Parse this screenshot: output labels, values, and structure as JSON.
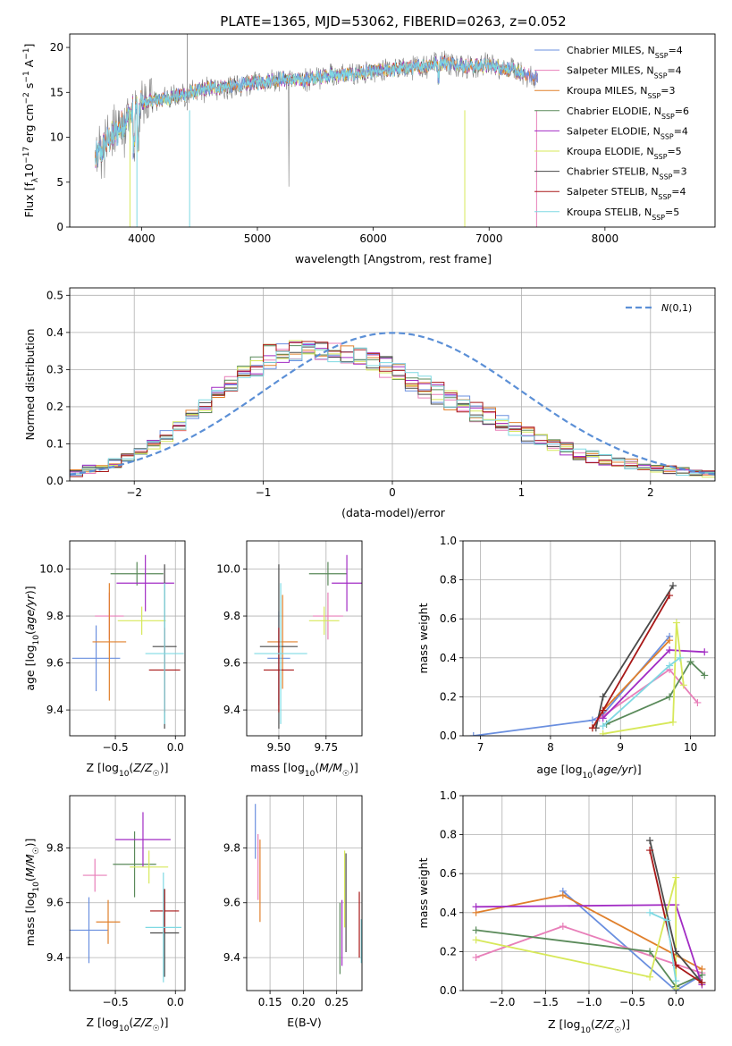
{
  "figure_title": "PLATE=1365, MJD=53062, FIBERID=0263, z=0.052",
  "colors": [
    "#6a8fdf",
    "#e87fb9",
    "#e0802c",
    "#5a8a5a",
    "#a22cc4",
    "#d7e85a",
    "#4a4a4a",
    "#a81818",
    "#7fd9e3"
  ],
  "chart_data": [
    {
      "id": "spectrum",
      "type": "line",
      "xlabel": "wavelength [Angstrom, rest frame]",
      "ylabel": "Flux [f_λ 10^-17 erg cm^-2 s^-1 A^-1]",
      "xlim": [
        3380,
        8950
      ],
      "ylim": [
        0,
        21.5
      ],
      "xticks": [
        4000,
        5000,
        6000,
        7000,
        8000
      ],
      "yticks": [
        0,
        5,
        10,
        15,
        20
      ],
      "grid": false,
      "legend": "upper-right",
      "continuum_x": [
        3600,
        3700,
        3800,
        3900,
        4000,
        4200,
        4400,
        4600,
        4800,
        5000,
        5200,
        5400,
        5600,
        5800,
        6000,
        6200,
        6400,
        6600,
        6700,
        6800,
        7000,
        7200,
        7300,
        7400
      ],
      "continuum_y": [
        7.5,
        9.5,
        10.8,
        12.5,
        13.8,
        14.3,
        14.9,
        15.5,
        15.7,
        16.1,
        16.5,
        16.3,
        16.9,
        17.0,
        17.3,
        17.6,
        17.9,
        18.3,
        18.2,
        17.9,
        18.0,
        17.5,
        17.0,
        16.6
      ],
      "series": [
        {
          "name": "Chabrier MILES, N_SSP=4"
        },
        {
          "name": "Salpeter MILES, N_SSP=4"
        },
        {
          "name": "Kroupa MILES, N_SSP=3"
        },
        {
          "name": "Chabrier ELODIE, N_SSP=6"
        },
        {
          "name": "Salpeter ELODIE, N_SSP=4"
        },
        {
          "name": "Kroupa ELODIE, N_SSP=5"
        },
        {
          "name": "Chabrier STELIB, N_SSP=3"
        },
        {
          "name": "Salpeter STELIB, N_SSP=4"
        },
        {
          "name": "Kroupa STELIB, N_SSP=5"
        }
      ]
    },
    {
      "id": "residuals",
      "type": "histogram",
      "xlabel": "(data-model)/error",
      "ylabel": "Normed distribution",
      "xlim": [
        -2.5,
        2.5
      ],
      "ylim": [
        0,
        0.52
      ],
      "xticks": [
        -2,
        -1,
        0,
        1,
        2
      ],
      "yticks": [
        0,
        0.1,
        0.2,
        0.3,
        0.4,
        0.5
      ],
      "grid": true,
      "legend": "upper-right",
      "gaussian_label": "N(0,1)",
      "bin_width": 0.1,
      "histograms": [
        [
          0.03,
          0.04,
          0.05,
          0.06,
          0.08,
          0.1,
          0.13,
          0.16,
          0.2,
          0.24,
          0.27,
          0.31,
          0.33,
          0.36,
          0.38,
          0.4,
          0.41,
          0.4,
          0.38,
          0.36,
          0.34,
          0.3,
          0.27,
          0.24,
          0.21,
          0.17,
          0.14,
          0.12,
          0.09,
          0.08,
          0.06,
          0.05,
          0.04,
          0.03,
          0.03,
          0.02,
          0.02,
          0.02,
          0.01,
          0.01,
          0.01,
          0.01,
          0.01,
          0.02,
          0.02,
          0.02,
          0.02,
          0.02,
          0.02,
          0.02
        ],
        [
          0.02,
          0.03,
          0.04,
          0.05,
          0.07,
          0.09,
          0.12,
          0.15,
          0.19,
          0.23,
          0.26,
          0.3,
          0.34,
          0.38,
          0.4,
          0.44,
          0.42,
          0.41,
          0.39,
          0.37,
          0.34,
          0.31,
          0.28,
          0.25,
          0.22,
          0.18,
          0.15,
          0.12,
          0.1,
          0.08,
          0.06,
          0.05,
          0.04,
          0.03,
          0.03,
          0.02,
          0.02,
          0.02,
          0.01,
          0.01,
          0.01,
          0.01,
          0.01,
          0.02,
          0.02,
          0.02,
          0.02,
          0.02,
          0.02,
          0.02
        ]
      ]
    },
    {
      "id": "age-vs-Z",
      "type": "scatter",
      "xlabel": "Z [log10(Z/Z_sun)]",
      "ylabel": "age [log10(age/yr)]",
      "xlim": [
        -0.88,
        0.08
      ],
      "ylim": [
        9.29,
        10.12
      ],
      "xticks": [
        -0.5,
        0.0
      ],
      "yticks": [
        9.4,
        9.6,
        9.8,
        10.0
      ],
      "grid": true,
      "points": [
        {
          "x": -0.66,
          "y": 9.62,
          "xerr": 0.2,
          "yerr": 0.14
        },
        {
          "x": -0.55,
          "y": 9.8,
          "xerr": 0.12,
          "yerr": 0.1
        },
        {
          "x": -0.55,
          "y": 9.69,
          "xerr": 0.14,
          "yerr": 0.25
        },
        {
          "x": -0.32,
          "y": 9.98,
          "xerr": 0.22,
          "yerr": 0.05
        },
        {
          "x": -0.25,
          "y": 9.94,
          "xerr": 0.24,
          "yerr": 0.12
        },
        {
          "x": -0.28,
          "y": 9.78,
          "xerr": 0.2,
          "yerr": 0.06
        },
        {
          "x": -0.09,
          "y": 9.67,
          "xerr": 0.1,
          "yerr": 0.35
        },
        {
          "x": -0.09,
          "y": 9.57,
          "xerr": 0.13,
          "yerr": 0.18
        },
        {
          "x": -0.09,
          "y": 9.64,
          "xerr": 0.16,
          "yerr": 0.3
        }
      ]
    },
    {
      "id": "age-vs-mass",
      "type": "scatter",
      "xlabel": "mass [log10(M/M_sun)]",
      "ylabel": "",
      "xlim": [
        9.33,
        9.94
      ],
      "ylim": [
        9.29,
        10.12
      ],
      "xticks": [
        9.5,
        9.75
      ],
      "yticks": [
        9.4,
        9.6,
        9.8,
        10.0
      ],
      "grid": true,
      "points": [
        {
          "x": 9.5,
          "y": 9.62,
          "xerr": 0.06,
          "yerr": 0.2
        },
        {
          "x": 9.76,
          "y": 9.8,
          "xerr": 0.08,
          "yerr": 0.1
        },
        {
          "x": 9.52,
          "y": 9.69,
          "xerr": 0.08,
          "yerr": 0.2
        },
        {
          "x": 9.76,
          "y": 9.98,
          "xerr": 0.1,
          "yerr": 0.05
        },
        {
          "x": 9.86,
          "y": 9.94,
          "xerr": 0.08,
          "yerr": 0.12
        },
        {
          "x": 9.74,
          "y": 9.78,
          "xerr": 0.08,
          "yerr": 0.06
        },
        {
          "x": 9.5,
          "y": 9.67,
          "xerr": 0.1,
          "yerr": 0.35
        },
        {
          "x": 9.5,
          "y": 9.57,
          "xerr": 0.08,
          "yerr": 0.18
        },
        {
          "x": 9.51,
          "y": 9.64,
          "xerr": 0.14,
          "yerr": 0.3
        }
      ]
    },
    {
      "id": "weight-vs-age",
      "type": "line",
      "xlabel": "age [log10(age/yr)]",
      "ylabel": "mass weight",
      "xlim": [
        6.75,
        10.35
      ],
      "ylim": [
        0,
        1.0
      ],
      "xticks": [
        7,
        8,
        9,
        10
      ],
      "yticks": [
        0.0,
        0.2,
        0.4,
        0.6,
        0.8,
        1.0
      ],
      "grid": true,
      "series": [
        {
          "x": [
            6.9,
            8.6,
            8.75,
            9.7
          ],
          "y": [
            0.0,
            0.08,
            0.11,
            0.51
          ]
        },
        {
          "x": [
            8.7,
            9.7,
            10.1
          ],
          "y": [
            0.09,
            0.34,
            0.17
          ]
        },
        {
          "x": [
            8.6,
            8.75,
            9.7
          ],
          "y": [
            0.04,
            0.13,
            0.49
          ]
        },
        {
          "x": [
            8.8,
            9.7,
            10.0,
            10.2
          ],
          "y": [
            0.06,
            0.2,
            0.38,
            0.31
          ]
        },
        {
          "x": [
            8.75,
            9.7,
            10.2
          ],
          "y": [
            0.09,
            0.44,
            0.43
          ]
        },
        {
          "x": [
            8.75,
            9.75,
            9.8,
            9.9
          ],
          "y": [
            0.01,
            0.07,
            0.58,
            0.26
          ]
        },
        {
          "x": [
            8.65,
            8.75,
            9.75
          ],
          "y": [
            0.04,
            0.2,
            0.77
          ]
        },
        {
          "x": [
            8.6,
            8.75,
            9.7
          ],
          "y": [
            0.04,
            0.13,
            0.72
          ]
        },
        {
          "x": [
            8.75,
            9.7,
            9.85
          ],
          "y": [
            0.05,
            0.36,
            0.4
          ]
        }
      ]
    },
    {
      "id": "mass-vs-Z",
      "type": "scatter",
      "xlabel": "Z [log10(Z/Z_sun)]",
      "ylabel": "mass [log10(M/M_sun)]",
      "xlim": [
        -0.88,
        0.08
      ],
      "ylim": [
        9.28,
        9.99
      ],
      "xticks": [
        -0.5,
        0.0
      ],
      "yticks": [
        9.4,
        9.6,
        9.8
      ],
      "grid": true,
      "points": [
        {
          "x": -0.72,
          "y": 9.5,
          "xerr": 0.16,
          "yerr": 0.12
        },
        {
          "x": -0.67,
          "y": 9.7,
          "xerr": 0.1,
          "yerr": 0.06
        },
        {
          "x": -0.56,
          "y": 9.53,
          "xerr": 0.1,
          "yerr": 0.08
        },
        {
          "x": -0.34,
          "y": 9.74,
          "xerr": 0.18,
          "yerr": 0.12
        },
        {
          "x": -0.27,
          "y": 9.83,
          "xerr": 0.23,
          "yerr": 0.1
        },
        {
          "x": -0.22,
          "y": 9.73,
          "xerr": 0.16,
          "yerr": 0.06
        },
        {
          "x": -0.09,
          "y": 9.49,
          "xerr": 0.12,
          "yerr": 0.16
        },
        {
          "x": -0.09,
          "y": 9.57,
          "xerr": 0.12,
          "yerr": 0.08
        },
        {
          "x": -0.1,
          "y": 9.51,
          "xerr": 0.15,
          "yerr": 0.2
        }
      ]
    },
    {
      "id": "mass-vs-ebv",
      "type": "scatter",
      "xlabel": "E(B-V)",
      "ylabel": "",
      "xlim": [
        0.115,
        0.288
      ],
      "ylim": [
        9.28,
        9.99
      ],
      "xticks": [
        0.15,
        0.2,
        0.25
      ],
      "yticks": [
        9.4,
        9.6,
        9.8
      ],
      "grid": true,
      "points": [
        {
          "x": 0.128,
          "y": 9.86,
          "xerr": 0.0,
          "yerr": 0.1
        },
        {
          "x": 0.132,
          "y": 9.73,
          "xerr": 0.0,
          "yerr": 0.12
        },
        {
          "x": 0.135,
          "y": 9.68,
          "xerr": 0.0,
          "yerr": 0.15
        },
        {
          "x": 0.255,
          "y": 9.47,
          "xerr": 0.0,
          "yerr": 0.13
        },
        {
          "x": 0.258,
          "y": 9.49,
          "xerr": 0.0,
          "yerr": 0.12
        },
        {
          "x": 0.262,
          "y": 9.65,
          "xerr": 0.0,
          "yerr": 0.14
        },
        {
          "x": 0.264,
          "y": 9.6,
          "xerr": 0.0,
          "yerr": 0.18
        },
        {
          "x": 0.284,
          "y": 9.52,
          "xerr": 0.0,
          "yerr": 0.12
        },
        {
          "x": 0.287,
          "y": 9.46,
          "xerr": 0.0,
          "yerr": 0.08
        }
      ]
    },
    {
      "id": "weight-vs-Z",
      "type": "line",
      "xlabel": "Z [log10(Z/Z_sun)]",
      "ylabel": "mass weight",
      "xlim": [
        -2.45,
        0.45
      ],
      "ylim": [
        0,
        1.0
      ],
      "xticks": [
        -2.0,
        -1.5,
        -1.0,
        -0.5,
        0.0
      ],
      "yticks": [
        0.0,
        0.2,
        0.4,
        0.6,
        0.8,
        1.0
      ],
      "grid": true,
      "series": [
        {
          "x": [
            -1.3,
            0.0,
            0.3
          ],
          "y": [
            0.51,
            0.0,
            0.08
          ]
        },
        {
          "x": [
            -2.3,
            -1.3,
            0.3
          ],
          "y": [
            0.17,
            0.33,
            0.09
          ]
        },
        {
          "x": [
            -2.3,
            -1.3,
            0.3
          ],
          "y": [
            0.4,
            0.49,
            0.11
          ]
        },
        {
          "x": [
            -2.3,
            -0.3,
            0.0,
            0.3
          ],
          "y": [
            0.31,
            0.2,
            0.02,
            0.08
          ]
        },
        {
          "x": [
            -2.3,
            0.0,
            0.3
          ],
          "y": [
            0.43,
            0.44,
            0.03
          ]
        },
        {
          "x": [
            -2.3,
            -0.3,
            0.0,
            0.0
          ],
          "y": [
            0.26,
            0.07,
            0.58,
            0.01
          ]
        },
        {
          "x": [
            -0.3,
            0.0,
            0.3
          ],
          "y": [
            0.77,
            0.2,
            0.04
          ]
        },
        {
          "x": [
            -0.3,
            0.0,
            0.3
          ],
          "y": [
            0.72,
            0.13,
            0.04
          ]
        },
        {
          "x": [
            -0.3,
            -0.1,
            0.0
          ],
          "y": [
            0.4,
            0.36,
            0.05
          ]
        }
      ]
    }
  ]
}
